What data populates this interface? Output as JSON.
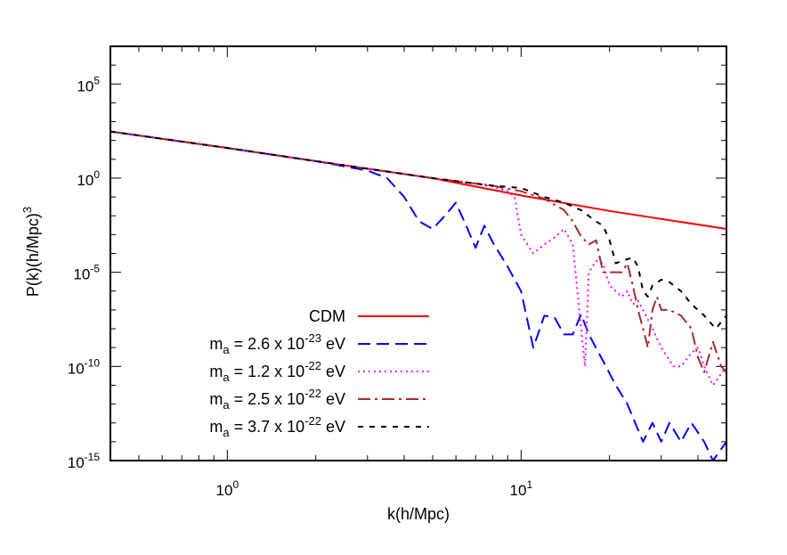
{
  "chart_data": {
    "type": "line",
    "scale": {
      "x": "log10",
      "y": "log10"
    },
    "xlim": [
      0.4,
      50
    ],
    "ylim": [
      1e-15,
      10000000.0
    ],
    "xlabel": "k(h/Mpc)",
    "ylabel": {
      "main": "P(k)(h/Mpc)",
      "exponent": "3"
    },
    "x_ticks": [
      {
        "value": 1,
        "base": "10",
        "exp": "0"
      },
      {
        "value": 10,
        "base": "10",
        "exp": "1"
      }
    ],
    "y_ticks": [
      {
        "value": 100000.0,
        "base": "10",
        "exp": "5"
      },
      {
        "value": 1,
        "base": "10",
        "exp": "0"
      },
      {
        "value": 1e-05,
        "base": "10",
        "exp": "-5"
      },
      {
        "value": 1e-10,
        "base": "10",
        "exp": "-10"
      },
      {
        "value": 1e-15,
        "base": "10",
        "exp": "-15"
      }
    ],
    "grid": false,
    "legend_position": "bottom-left",
    "series": [
      {
        "name": "CDM",
        "legend": {
          "base": "CDM"
        },
        "color": "#ff0000",
        "style": "solid",
        "points": [
          [
            0.4,
            300
          ],
          [
            1,
            40
          ],
          [
            2,
            8
          ],
          [
            5,
            1
          ],
          [
            10,
            0.12
          ],
          [
            20,
            0.018
          ],
          [
            50,
            0.002
          ]
        ]
      },
      {
        "name": "m_a = 2.6 x 10^-23 eV",
        "legend": {
          "base": "m",
          "sub": "a",
          "mid": " = 2.6 x 10",
          "sup": "-23",
          "tail": " eV"
        },
        "color": "#0000ff",
        "style": "dash",
        "points": [
          [
            0.4,
            300
          ],
          [
            1,
            40
          ],
          [
            2,
            8
          ],
          [
            3,
            2.5
          ],
          [
            3.5,
            1
          ],
          [
            4,
            0.1
          ],
          [
            4.5,
            0.005
          ],
          [
            5,
            0.002
          ],
          [
            5.5,
            0.01
          ],
          [
            6,
            0.05
          ],
          [
            6.5,
            0.003
          ],
          [
            7,
            0.0002
          ],
          [
            7.5,
            0.003
          ],
          [
            8,
            0.0004
          ],
          [
            9,
            2e-05
          ],
          [
            10,
            1e-06
          ],
          [
            11,
            1e-09
          ],
          [
            12,
            5e-08
          ],
          [
            13,
            4e-08
          ],
          [
            14,
            5e-09
          ],
          [
            15,
            5e-09
          ],
          [
            16,
            6e-08
          ],
          [
            17,
            5e-09
          ],
          [
            19,
            2e-10
          ],
          [
            21,
            1e-11
          ],
          [
            23,
            1e-12
          ],
          [
            26,
            1e-14
          ],
          [
            28,
            1e-13
          ],
          [
            30,
            1e-14
          ],
          [
            32,
            1e-13
          ],
          [
            35,
            1e-14
          ],
          [
            38,
            1e-13
          ],
          [
            42,
            1e-14
          ],
          [
            45,
            1e-15
          ],
          [
            50,
            1e-14
          ]
        ]
      },
      {
        "name": "m_a = 1.2 x 10^-22 eV",
        "legend": {
          "base": "m",
          "sub": "a",
          "mid": " = 1.2 x 10",
          "sup": "-22",
          "tail": " eV"
        },
        "color": "#ff00ff",
        "style": "dot",
        "points": [
          [
            0.4,
            300
          ],
          [
            1,
            40
          ],
          [
            2,
            8
          ],
          [
            5,
            1
          ],
          [
            7,
            0.5
          ],
          [
            8,
            0.35
          ],
          [
            9,
            0.2
          ],
          [
            9.5,
            0.1
          ],
          [
            10,
            0.001
          ],
          [
            11,
            0.0001
          ],
          [
            12,
            0.0003
          ],
          [
            13,
            0.0007
          ],
          [
            14,
            0.002
          ],
          [
            15,
            0.0003
          ],
          [
            16,
            1e-08
          ],
          [
            16.5,
            1e-10
          ],
          [
            17,
            1e-05
          ],
          [
            18,
            4e-05
          ],
          [
            19,
            3e-05
          ],
          [
            20,
            2e-06
          ],
          [
            21,
            1e-06
          ],
          [
            22,
            5e-07
          ],
          [
            23,
            1e-06
          ],
          [
            24,
            2e-07
          ],
          [
            25,
            3e-07
          ],
          [
            26,
            1e-07
          ],
          [
            28,
            1e-08
          ],
          [
            30,
            1e-09
          ],
          [
            33,
            1e-10
          ],
          [
            35,
            1e-10
          ],
          [
            38,
            5e-10
          ],
          [
            40,
            1e-09
          ],
          [
            42,
            1e-10
          ],
          [
            45,
            1e-11
          ],
          [
            50,
            1e-10
          ]
        ]
      },
      {
        "name": "m_a = 2.5 x 10^-22 eV",
        "legend": {
          "base": "m",
          "sub": "a",
          "mid": " = 2.5 x 10",
          "sup": "-22",
          "tail": " eV"
        },
        "color": "#a52a2a",
        "style": "dashdot",
        "points": [
          [
            0.4,
            300
          ],
          [
            1,
            40
          ],
          [
            2,
            8
          ],
          [
            5,
            1
          ],
          [
            8,
            0.4
          ],
          [
            10,
            0.2
          ],
          [
            12,
            0.08
          ],
          [
            14,
            0.02
          ],
          [
            15,
            0.005
          ],
          [
            16,
            0.0008
          ],
          [
            17,
            0.0003
          ],
          [
            18,
            0.0005
          ],
          [
            19,
            1e-05
          ],
          [
            20,
            1e-05
          ],
          [
            22,
            1e-05
          ],
          [
            23,
            3e-05
          ],
          [
            24,
            2e-06
          ],
          [
            25,
            1e-07
          ],
          [
            26,
            1e-08
          ],
          [
            27,
            1e-09
          ],
          [
            28,
            1e-07
          ],
          [
            29,
            5e-07
          ],
          [
            30,
            1e-07
          ],
          [
            32,
            1e-07
          ],
          [
            35,
            5e-08
          ],
          [
            38,
            1e-08
          ],
          [
            40,
            3e-10
          ],
          [
            42,
            5e-11
          ],
          [
            45,
            2e-09
          ],
          [
            48,
            1e-10
          ],
          [
            50,
            5e-11
          ]
        ]
      },
      {
        "name": "m_a = 3.7 x 10^-22 eV",
        "legend": {
          "base": "m",
          "sub": "a",
          "mid": " = 3.7 x 10",
          "sup": "-22",
          "tail": " eV"
        },
        "color": "#000000",
        "style": "shortdash",
        "points": [
          [
            0.4,
            300
          ],
          [
            1,
            40
          ],
          [
            2,
            8
          ],
          [
            5,
            1
          ],
          [
            8,
            0.4
          ],
          [
            10,
            0.3
          ],
          [
            12,
            0.1
          ],
          [
            14,
            0.05
          ],
          [
            16,
            0.02
          ],
          [
            18,
            0.005
          ],
          [
            19,
            0.003
          ],
          [
            20,
            0.0005
          ],
          [
            21,
            3e-05
          ],
          [
            22,
            4e-05
          ],
          [
            24,
            6e-05
          ],
          [
            25,
            2e-05
          ],
          [
            26,
            1e-06
          ],
          [
            27,
            5e-07
          ],
          [
            28,
            2e-06
          ],
          [
            30,
            4e-06
          ],
          [
            32,
            3e-06
          ],
          [
            35,
            1e-06
          ],
          [
            38,
            2e-07
          ],
          [
            42,
            5e-08
          ],
          [
            46,
            1e-08
          ],
          [
            50,
            5e-08
          ]
        ]
      }
    ]
  }
}
